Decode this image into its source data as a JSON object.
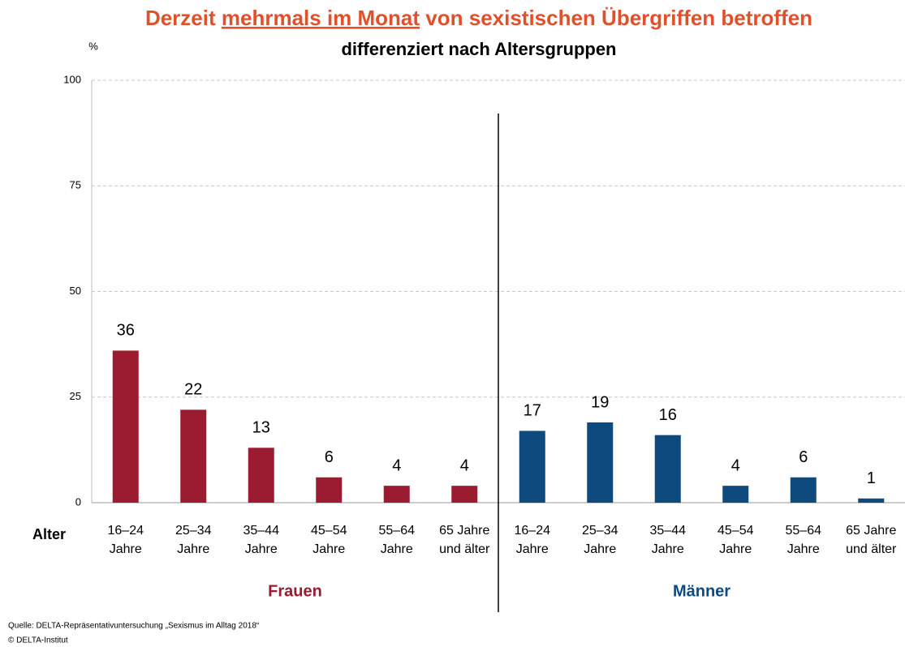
{
  "chart_data": {
    "type": "bar",
    "title": [
      "Derzeit",
      "mehrmals im Monat",
      "von sexistischen Übergriffen betroffen"
    ],
    "subtitle": "differenziert nach Altersgruppen",
    "y_label": "%",
    "x_label": "Alter",
    "categories": [
      [
        "16–24",
        "Jahre"
      ],
      [
        "25–34",
        "Jahre"
      ],
      [
        "35–44",
        "Jahre"
      ],
      [
        "45–54",
        "Jahre"
      ],
      [
        "55–64",
        "Jahre"
      ],
      [
        "65 Jahre",
        "und älter"
      ],
      [
        "16–24",
        "Jahre"
      ],
      [
        "25–34",
        "Jahre"
      ],
      [
        "35–44",
        "Jahre"
      ],
      [
        "45–54",
        "Jahre"
      ],
      [
        "55–64",
        "Jahre"
      ],
      [
        "65 Jahre",
        "und älter"
      ]
    ],
    "series": [
      {
        "name": "Frauen",
        "color": "#9b1b30",
        "values": [
          36,
          22,
          13,
          6,
          4,
          4,
          null,
          null,
          null,
          null,
          null,
          null
        ]
      },
      {
        "name": "Männer",
        "color": "#0e4a7e",
        "values": [
          null,
          null,
          null,
          null,
          null,
          null,
          17,
          19,
          16,
          4,
          6,
          1
        ]
      }
    ],
    "ylim": [
      0,
      100
    ],
    "yticks": [
      0,
      25,
      50,
      75,
      100
    ],
    "grid": true,
    "source": "Quelle: DELTA-Repräsentativuntersuchung „Sexismus im Alltag 2018“",
    "copyright": "© DELTA-Institut"
  }
}
